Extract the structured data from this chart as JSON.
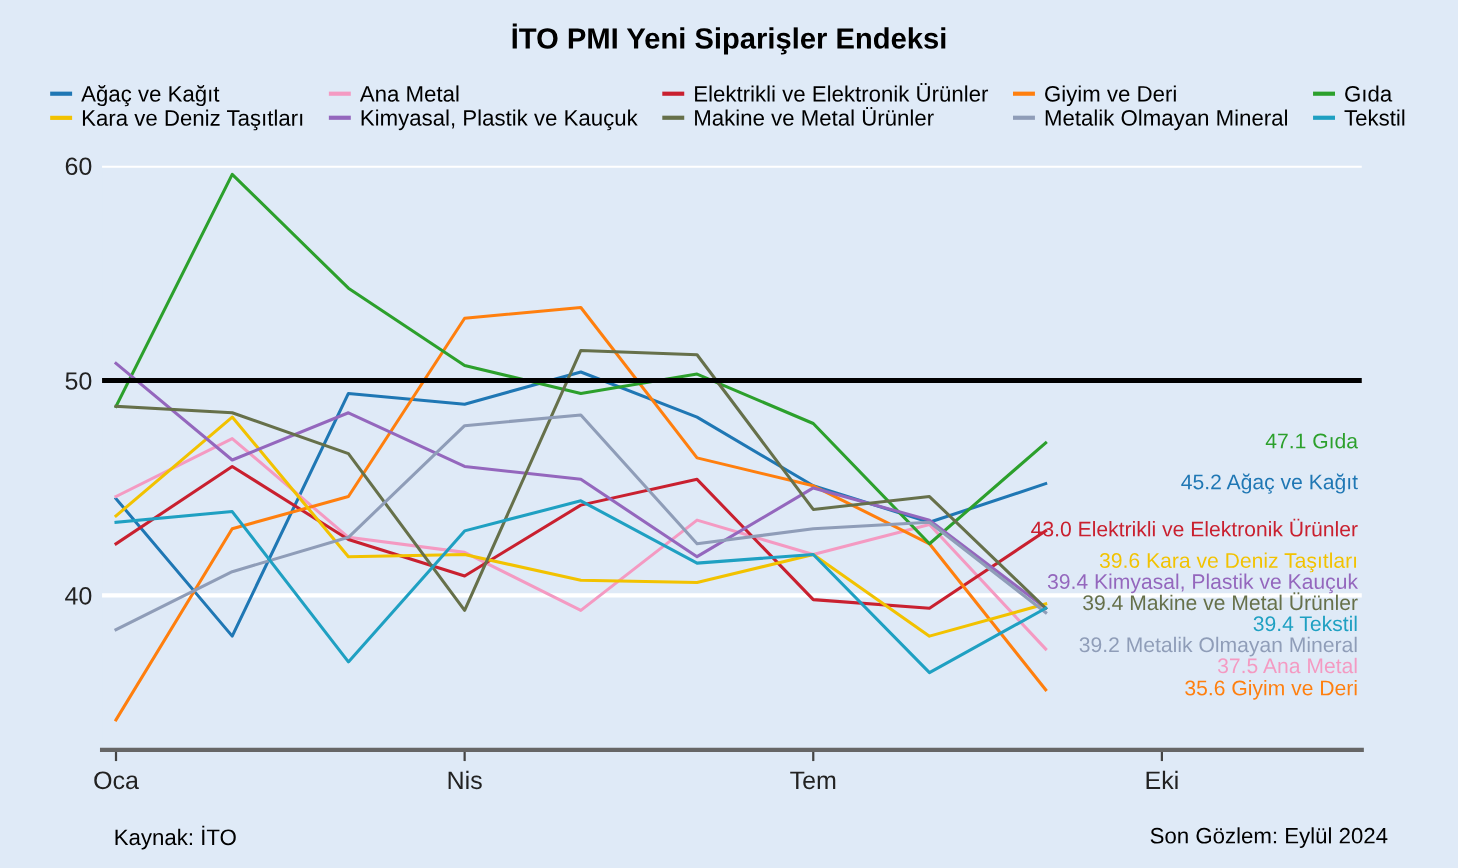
{
  "chart_data": {
    "type": "line",
    "title": "İTO PMI Yeni Siparişler Endeksi",
    "categories": [
      "Oca",
      null,
      null,
      "Nis",
      null,
      null,
      "Tem",
      null,
      null,
      "Eki"
    ],
    "series": [
      {
        "name": "Ağaç ve Kağıt",
        "color": "#1f77b4",
        "values": [
          44.5,
          38.1,
          49.4,
          48.9,
          50.4,
          48.3,
          45.1,
          43.4,
          45.2,
          null
        ]
      },
      {
        "name": "Ana Metal",
        "color": "#f49ac2",
        "values": [
          44.6,
          47.3,
          42.7,
          42.0,
          39.3,
          43.5,
          41.9,
          43.3,
          37.5,
          null
        ]
      },
      {
        "name": "Elektrikli ve Elektronik Ürünler",
        "color": "#c9202f",
        "values": [
          42.4,
          46.0,
          42.6,
          40.9,
          44.2,
          45.4,
          39.8,
          39.4,
          43.0,
          null
        ]
      },
      {
        "name": "Giyim ve Deri",
        "color": "#ff7f0e",
        "values": [
          34.2,
          43.1,
          44.6,
          52.9,
          53.4,
          46.4,
          45.1,
          42.4,
          35.6,
          null
        ]
      },
      {
        "name": "Gıda",
        "color": "#2ca02c",
        "values": [
          48.8,
          59.6,
          54.3,
          50.7,
          49.4,
          50.3,
          48.0,
          42.4,
          47.1,
          null
        ]
      },
      {
        "name": "Kara ve Deniz Taşıtları",
        "color": "#f2c200",
        "values": [
          43.7,
          48.3,
          41.8,
          41.9,
          40.7,
          40.6,
          41.9,
          38.1,
          39.6,
          null
        ]
      },
      {
        "name": "Kimyasal, Plastik ve Kauçuk",
        "color": "#9467bd",
        "values": [
          50.8,
          46.3,
          48.5,
          46.0,
          45.4,
          41.8,
          45.0,
          43.5,
          39.4,
          null
        ]
      },
      {
        "name": "Makine ve Metal Ürünler",
        "color": "#66704a",
        "values": [
          48.8,
          48.5,
          46.6,
          39.3,
          51.4,
          51.2,
          44.0,
          44.6,
          39.4,
          null
        ]
      },
      {
        "name": "Metalik Olmayan Mineral",
        "color": "#8f9db8",
        "values": [
          38.4,
          41.1,
          42.7,
          47.9,
          48.4,
          42.4,
          43.1,
          43.4,
          39.2,
          null
        ]
      },
      {
        "name": "Tekstil",
        "color": "#1fa0c2",
        "values": [
          43.4,
          43.9,
          36.9,
          43.0,
          44.4,
          41.5,
          41.9,
          36.4,
          39.4,
          null
        ]
      }
    ],
    "ylim": [
      32.8,
      60
    ],
    "yticks": [
      40,
      50,
      60
    ],
    "ref_lines": [
      {
        "axis": "y",
        "value": 50,
        "color": "#000000"
      }
    ],
    "grid": "y",
    "legend": "top",
    "marker": "none",
    "line_style": "solid",
    "annotations": [
      "45.2 Ağaç ve Kağıt",
      "37.5 Ana Metal",
      "43.0 Elektrikli ve Elektronik Ürünler",
      "35.6 Giyim ve Deri",
      "47.1 Gıda",
      "39.6 Kara ve Deniz Taşıtları",
      "39.4 Kimyasal, Plastik ve Kauçuk",
      "39.4 Makine ve Metal Ürünler",
      "39.2 Metalik Olmayan Mineral",
      "39.4 Tekstil",
      "Kaynak: İTO",
      "Son Gözlem: Eylül 2024"
    ]
  }
}
